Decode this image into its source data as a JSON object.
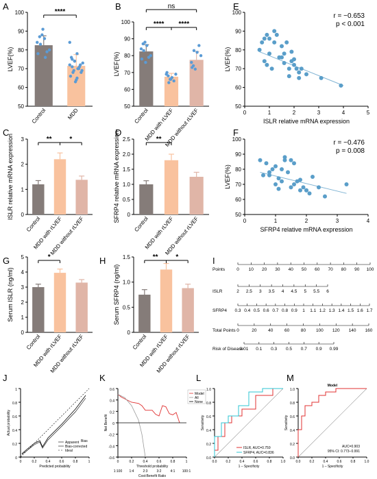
{
  "colors": {
    "control": "#857c79",
    "mdd": "#f9c29e",
    "mdd_rlvef": "#f9c29e",
    "mdd_no_rlvef": "#e0b5a7",
    "dot": "#5b9bd5",
    "scatter": "#5a9ec9",
    "fitline": "#7fb3d3",
    "red": "#e03030",
    "cyan": "#2ec4d3",
    "axis": "#000000"
  },
  "panel_labels": [
    "A",
    "B",
    "C",
    "D",
    "E",
    "F",
    "G",
    "H",
    "I",
    "J",
    "K",
    "L",
    "M"
  ],
  "chart_data": [
    {
      "id": "A",
      "type": "bar",
      "categories": [
        "Control",
        "MDD"
      ],
      "values": [
        82.5,
        71.5
      ],
      "errors": [
        5,
        6
      ],
      "ylabel": "LVEF(%)",
      "ylim": [
        50,
        100
      ],
      "yticks": [
        50,
        60,
        70,
        80,
        90,
        100
      ],
      "sig": [
        {
          "from": 0,
          "to": 1,
          "label": "****"
        }
      ],
      "points": [
        [
          84,
          87,
          88,
          86,
          79,
          80,
          78,
          83,
          91,
          76
        ],
        [
          84,
          75,
          74,
          78,
          71,
          69,
          66,
          68,
          63,
          70,
          72,
          73,
          76,
          69,
          64,
          70,
          68,
          72,
          71,
          74,
          65
        ]
      ]
    },
    {
      "id": "B",
      "type": "bar",
      "categories": [
        "Control",
        "MDD with rLVEF",
        "MDD without rLVEF"
      ],
      "values": [
        82.5,
        67.5,
        77.5
      ],
      "errors": [
        4,
        2,
        5
      ],
      "ylabel": "LVEF(%)",
      "ylim": [
        50,
        100
      ],
      "yticks": [
        50,
        60,
        70,
        80,
        90,
        100
      ],
      "sig": [
        {
          "from": 0,
          "to": 1,
          "label": "****"
        },
        {
          "from": 1,
          "to": 2,
          "label": "****"
        },
        {
          "from": 0,
          "to": 2,
          "label": "ns"
        }
      ],
      "points": [
        [
          84,
          87,
          88,
          86,
          79,
          80,
          78,
          83,
          76
        ],
        [
          69,
          68,
          66,
          67,
          65,
          69,
          70,
          64,
          66
        ],
        [
          76,
          74,
          72,
          82,
          86,
          80,
          73,
          83
        ]
      ]
    },
    {
      "id": "E",
      "type": "scatter",
      "xlabel": "ISLR relative mRNA expression",
      "ylabel": "LVEF(%)",
      "xlim": [
        0,
        5
      ],
      "ylim": [
        50,
        100
      ],
      "xticks": [
        0,
        1,
        2,
        3,
        4,
        5
      ],
      "yticks": [
        50,
        60,
        70,
        80,
        90,
        100
      ],
      "r": "r = −0.653",
      "p": "p < 0.001",
      "fit": [
        [
          0.6,
          79
        ],
        [
          4.0,
          61
        ]
      ],
      "x": [
        0.6,
        0.7,
        0.8,
        0.9,
        1.0,
        1.0,
        1.2,
        1.3,
        1.5,
        1.5,
        1.6,
        1.7,
        1.8,
        1.8,
        1.9,
        2.0,
        2.0,
        2.1,
        2.2,
        2.3,
        0.8,
        1.1,
        1.4,
        1.6,
        2.5,
        3.1,
        3.9,
        1.2,
        0.9,
        1.9,
        2.2
      ],
      "y": [
        80,
        84,
        86,
        88,
        86,
        78,
        90,
        88,
        76,
        82,
        73,
        84,
        70,
        66,
        79,
        75,
        72,
        70,
        68,
        70,
        74,
        70,
        76,
        78,
        67,
        65,
        61,
        84,
        72,
        74,
        65
      ]
    },
    {
      "id": "F",
      "type": "scatter",
      "xlabel": "SFRP4 relative mRNA expression",
      "ylabel": "LVEF(%)",
      "xlim": [
        0,
        4
      ],
      "ylim": [
        50,
        100
      ],
      "xticks": [
        0,
        1,
        2,
        3,
        4
      ],
      "yticks": [
        50,
        60,
        70,
        80,
        90,
        100
      ],
      "r": "r = −0.476",
      "p": "p = 0.008",
      "fit": [
        [
          0.5,
          78
        ],
        [
          3.3,
          64
        ]
      ],
      "x": [
        0.5,
        0.7,
        0.8,
        0.9,
        1.0,
        1.0,
        1.1,
        1.2,
        1.3,
        1.3,
        1.4,
        1.5,
        1.6,
        1.6,
        1.7,
        1.8,
        1.9,
        2.0,
        2.1,
        2.2,
        2.4,
        2.6,
        3.3,
        0.6,
        0.8,
        1.2,
        1.5,
        1.8,
        2.0,
        1.1
      ],
      "y": [
        86,
        84,
        76,
        80,
        82,
        70,
        74,
        72,
        88,
        86,
        78,
        68,
        84,
        70,
        72,
        66,
        68,
        66,
        64,
        75,
        68,
        62,
        70,
        76,
        78,
        80,
        86,
        73,
        66,
        67
      ]
    },
    {
      "id": "C",
      "type": "bar",
      "categories": [
        "Control",
        "MDD with rLVEF",
        "MDD without rLVEF"
      ],
      "values": [
        1.2,
        2.2,
        1.38
      ],
      "errors": [
        0.15,
        0.25,
        0.15
      ],
      "ylabel": "ISLR relative mRNA expression",
      "ylim": [
        0,
        3
      ],
      "yticks": [
        0,
        1,
        2,
        3
      ],
      "sig": [
        {
          "from": 0,
          "to": 1,
          "label": "**"
        },
        {
          "from": 1,
          "to": 2,
          "label": "*"
        }
      ]
    },
    {
      "id": "D",
      "type": "bar",
      "categories": [
        "Control",
        "MDD with rLVEF",
        "MDD without rLVEF"
      ],
      "values": [
        1.0,
        1.8,
        1.25
      ],
      "errors": [
        0.12,
        0.2,
        0.15
      ],
      "ylabel": "SFRP4 relative mRNA expression",
      "ylim": [
        0,
        2.5
      ],
      "yticks": [
        0,
        0.5,
        1.0,
        1.5,
        2.0,
        2.5
      ],
      "ytick_labels": [
        "0",
        "0.5",
        "1.0",
        "1.5",
        "2.0",
        "2.5"
      ],
      "sig": [
        {
          "from": 0,
          "to": 1,
          "label": "**"
        }
      ]
    },
    {
      "id": "G",
      "type": "bar",
      "categories": [
        "Control",
        "MDD with rLVEF",
        "MDD without rLVEF"
      ],
      "values": [
        3.0,
        3.95,
        3.3
      ],
      "errors": [
        0.2,
        0.25,
        0.2
      ],
      "ylabel": "Serum ISLR (ng/ml)",
      "ylim": [
        0,
        5
      ],
      "yticks": [
        0,
        1,
        2,
        3,
        4,
        5
      ],
      "sig": [
        {
          "from": 0,
          "to": 1,
          "label": "*"
        }
      ]
    },
    {
      "id": "H",
      "type": "bar",
      "categories": [
        "Control",
        "MDD with rLVEF",
        "MDD without rLVEF"
      ],
      "values": [
        0.75,
        1.25,
        0.88
      ],
      "errors": [
        0.1,
        0.12,
        0.08
      ],
      "ylabel": "Serum SFRP4 (ng/ml)",
      "ylim": [
        0,
        1.5
      ],
      "yticks": [
        0,
        0.5,
        1.0,
        1.5
      ],
      "ytick_labels": [
        "0",
        "0.5",
        "1.0",
        "1.5"
      ],
      "sig": [
        {
          "from": 0,
          "to": 1,
          "label": "**"
        },
        {
          "from": 1,
          "to": 2,
          "label": "*"
        }
      ]
    },
    {
      "id": "I",
      "type": "table",
      "rows": [
        {
          "label": "Points",
          "ticks": [
            "0",
            "10",
            "20",
            "30",
            "40",
            "50",
            "60",
            "70",
            "80",
            "90",
            "100"
          ]
        },
        {
          "label": "ISLR",
          "ticks": [
            "2",
            "2.5",
            "3",
            "3.5",
            "4",
            "4.5",
            "5",
            "5.5",
            "6"
          ]
        },
        {
          "label": "SFRP4",
          "ticks": [
            "0.3",
            "0.4",
            "0.5",
            "0.6",
            "0.7",
            "0.8",
            "0.9",
            "1",
            "1.1",
            "1.2",
            "1.3",
            "1.4",
            "1.5",
            "1.6",
            "1.7"
          ]
        },
        {
          "label": "Total Points",
          "ticks": [
            "0",
            "20",
            "40",
            "60",
            "80",
            "100",
            "120",
            "140",
            "160"
          ]
        },
        {
          "label": "Risk of Disease",
          "ticks": [
            "0.01",
            "0.1",
            "0.3",
            "0.5",
            "0.7",
            "0.9",
            "0.99"
          ]
        }
      ]
    },
    {
      "id": "J",
      "type": "line",
      "xlabel": "Predicted probability",
      "ylabel": "Actual probability",
      "xlim": [
        0,
        1
      ],
      "ylim": [
        0,
        1
      ],
      "xticks": [
        0,
        0.2,
        0.4,
        0.6,
        0.8,
        1.0
      ],
      "xtick_labels": [
        "0",
        "0.2",
        "0.4",
        "0.6",
        "0.8",
        "1"
      ],
      "yticks": [
        0,
        0.2,
        0.4,
        0.6,
        0.8,
        1.0
      ],
      "ytick_labels": [
        "0",
        "0.2",
        "0.4",
        "0.6",
        "0.8",
        "1"
      ],
      "legend": [
        "Apparent",
        "Bias-corrected",
        "Ideal"
      ],
      "series": [
        {
          "name": "Apparent",
          "x": [
            0.02,
            0.1,
            0.2,
            0.28,
            0.32,
            0.4,
            0.6,
            0.8,
            0.95
          ],
          "y": [
            0.05,
            0.12,
            0.2,
            0.24,
            0.15,
            0.28,
            0.48,
            0.7,
            0.9
          ]
        },
        {
          "name": "Bias-corrected",
          "x": [
            0.02,
            0.1,
            0.2,
            0.28,
            0.32,
            0.4,
            0.6,
            0.8,
            0.95
          ],
          "y": [
            0.04,
            0.1,
            0.18,
            0.22,
            0.13,
            0.25,
            0.45,
            0.66,
            0.86
          ]
        },
        {
          "name": "Ideal",
          "x": [
            0,
            1
          ],
          "y": [
            0,
            1
          ]
        }
      ]
    },
    {
      "id": "K",
      "type": "line",
      "xlabel": "Threshold probability",
      "ylabel": "Net Benefit",
      "x2label": "Cost:Benefit Ratio",
      "xticks": [
        0,
        0.2,
        0.4,
        0.6,
        0.8,
        1.0
      ],
      "xtick_labels": [
        "0",
        "0.2",
        "0.4",
        "0.6",
        "0.8",
        "1"
      ],
      "x2tick_labels": [
        "1:100",
        "1:4",
        "2:3",
        "3:2",
        "4:1",
        "100:1"
      ],
      "yticks": [
        -0.6,
        -0.4,
        -0.2,
        0,
        0.2,
        0.4,
        0.6
      ],
      "ytick_labels": [
        "-0.6",
        "-0.4",
        "-0.2",
        "0",
        "0.2",
        "0.4",
        "0.6"
      ],
      "xlim": [
        0,
        1
      ],
      "ylim": [
        -0.6,
        0.6
      ],
      "legend": [
        "Model",
        "All",
        "None"
      ],
      "series": [
        {
          "name": "Model",
          "x": [
            0,
            0.05,
            0.1,
            0.2,
            0.3,
            0.35,
            0.4,
            0.5,
            0.55,
            0.6,
            0.65,
            0.7,
            0.75,
            0.8,
            0.85,
            0.9
          ],
          "y": [
            0.5,
            0.45,
            0.42,
            0.36,
            0.34,
            0.3,
            0.22,
            0.22,
            0.15,
            0.12,
            0.3,
            0.28,
            0.16,
            0.14,
            0.18,
            0.0
          ]
        },
        {
          "name": "All",
          "x": [
            0,
            0.1,
            0.2,
            0.3,
            0.35,
            0.4
          ],
          "y": [
            0.5,
            0.44,
            0.3,
            0.05,
            -0.2,
            -0.6
          ]
        },
        {
          "name": "None",
          "x": [
            0,
            1
          ],
          "y": [
            0,
            0
          ]
        }
      ]
    },
    {
      "id": "L",
      "type": "line",
      "xlabel": "1 – Specificity",
      "ylabel": "Sensitivity",
      "xlim": [
        0,
        1
      ],
      "ylim": [
        0,
        1
      ],
      "xticks": [
        0,
        0.2,
        0.4,
        0.6,
        0.8,
        1.0
      ],
      "xtick_labels": [
        "0.0",
        "0.2",
        "0.4",
        "0.6",
        "0.8",
        "1.0"
      ],
      "yticks": [
        0,
        0.2,
        0.4,
        0.6,
        0.8,
        1.0
      ],
      "ytick_labels": [
        "0.0",
        "0.2",
        "0.4",
        "0.6",
        "0.8",
        "1.0"
      ],
      "series": [
        {
          "name": "ISLR, AUC=0.759",
          "x": [
            0,
            0,
            0.05,
            0.05,
            0.15,
            0.15,
            0.25,
            0.25,
            0.4,
            0.4,
            0.6,
            0.6,
            0.85,
            0.85,
            1
          ],
          "y": [
            0,
            0.1,
            0.1,
            0.3,
            0.3,
            0.5,
            0.5,
            0.6,
            0.6,
            0.7,
            0.7,
            0.9,
            0.9,
            1,
            1
          ]
        },
        {
          "name": "SFRP4, AUC=0.836",
          "x": [
            0,
            0,
            0.1,
            0.1,
            0.2,
            0.2,
            0.35,
            0.35,
            0.5,
            0.5,
            0.7,
            0.7,
            1
          ],
          "y": [
            0,
            0.3,
            0.3,
            0.5,
            0.5,
            0.6,
            0.6,
            0.75,
            0.75,
            0.95,
            0.95,
            1,
            1
          ]
        }
      ]
    },
    {
      "id": "M",
      "type": "line",
      "title": "Model",
      "xlabel": "1 – Specificity",
      "ylabel": "Sensitivity",
      "xlim": [
        0,
        1
      ],
      "ylim": [
        0,
        1
      ],
      "xticks": [
        0,
        0.2,
        0.4,
        0.6,
        0.8,
        1.0
      ],
      "xtick_labels": [
        "0.0",
        "0.2",
        "0.4",
        "0.6",
        "0.8",
        "1.0"
      ],
      "yticks": [
        0,
        0.2,
        0.4,
        0.6,
        0.8,
        1.0
      ],
      "ytick_labels": [
        "0.0",
        "0.2",
        "0.4",
        "0.6",
        "0.8",
        "1.0"
      ],
      "annotation": [
        "AUC=0.903",
        "95% CI: 0.773−0.991"
      ],
      "series": [
        {
          "name": "Model",
          "x": [
            0,
            0,
            0.05,
            0.05,
            0.1,
            0.1,
            0.2,
            0.2,
            0.3,
            0.3,
            0.4,
            0.4,
            0.55,
            0.55,
            1
          ],
          "y": [
            0,
            0.4,
            0.4,
            0.6,
            0.6,
            0.75,
            0.75,
            0.8,
            0.8,
            0.9,
            0.9,
            0.95,
            0.95,
            1,
            1
          ]
        }
      ]
    }
  ]
}
